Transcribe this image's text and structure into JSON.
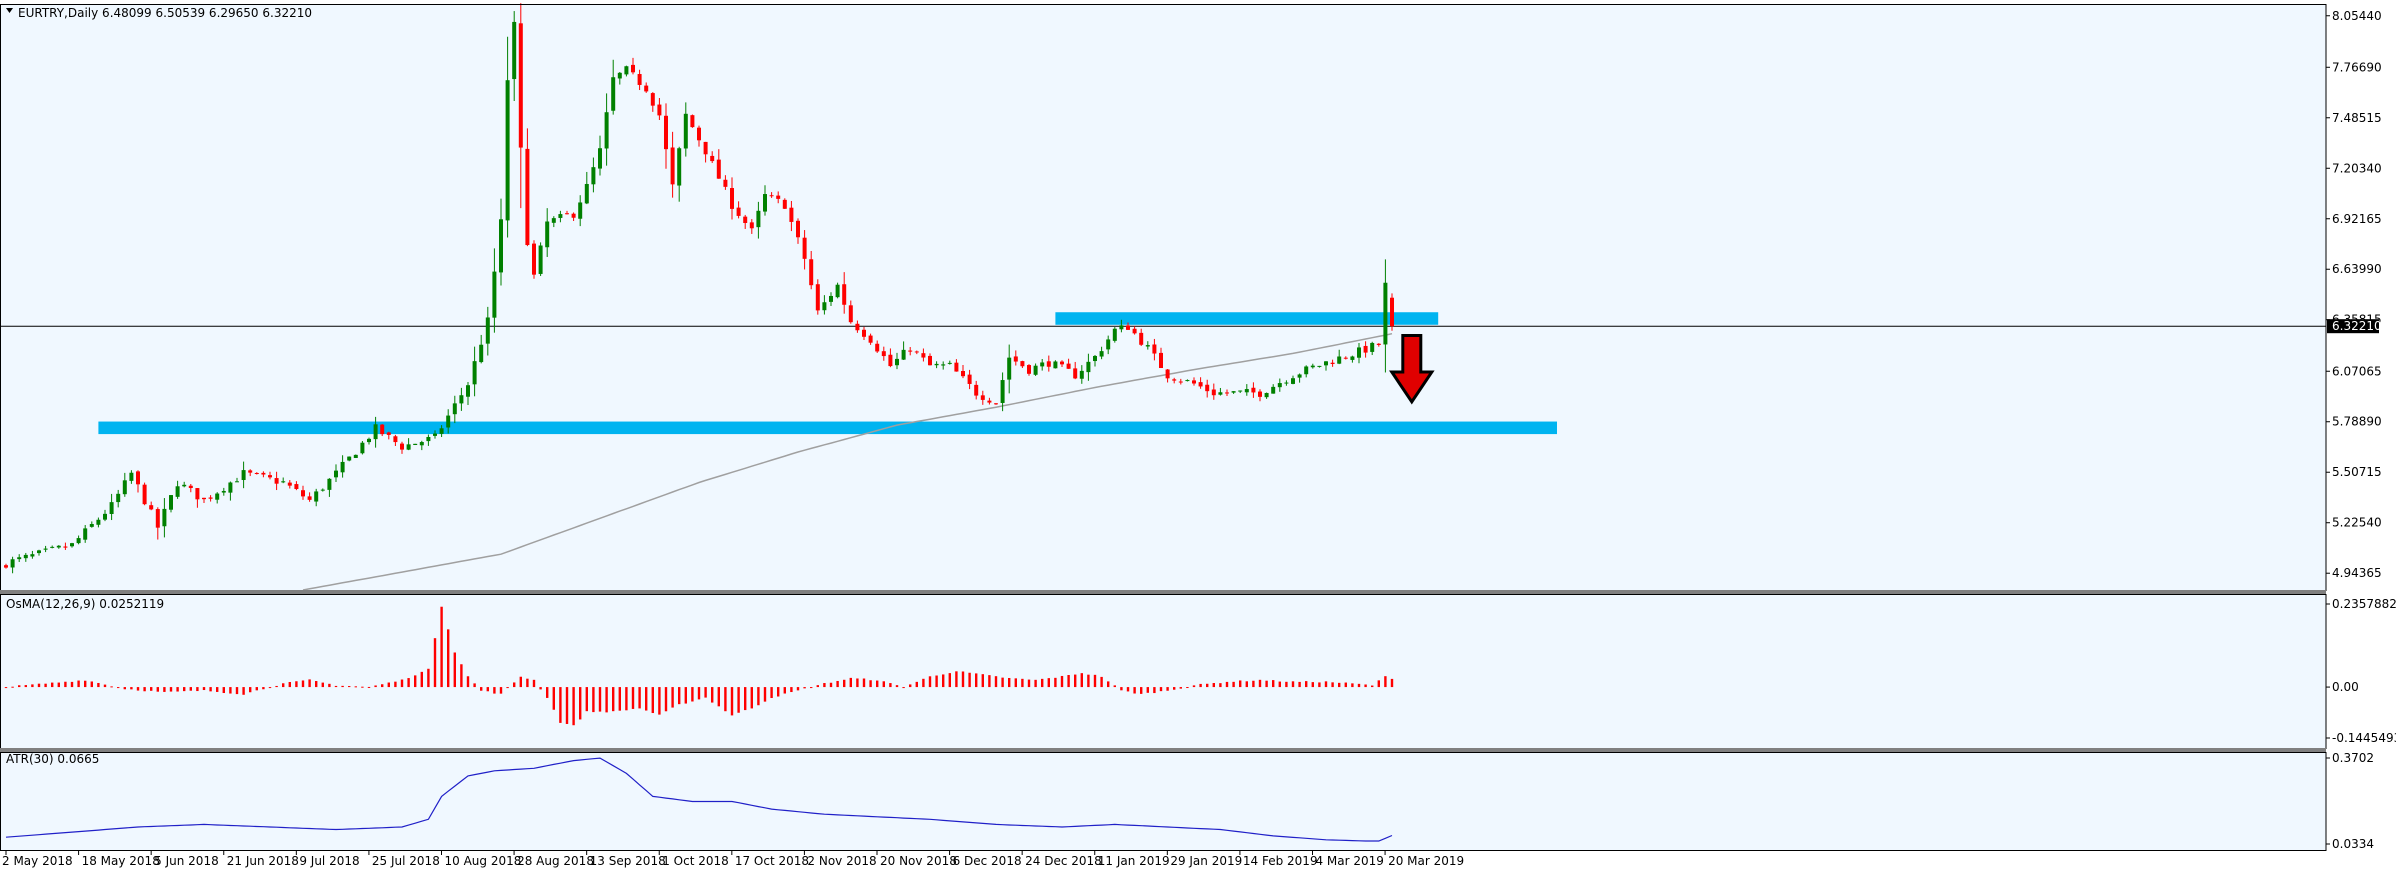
{
  "window": {
    "symbol_line": "EURTRY,Daily  6.48099 6.50539 6.29650 6.32210",
    "current_price": "6.32210"
  },
  "colors": {
    "background": "#f0f8ff",
    "bull": "#008000",
    "bear": "#ff0000",
    "sma": "#a0a0a0",
    "zone": "#00b4f0",
    "atr": "#2020c8",
    "arrow": "#e00000"
  },
  "chart_data": [
    {
      "type": "candlestick",
      "title": "EURTRY,Daily",
      "ohlc": {
        "open": 6.48099,
        "high": 6.50539,
        "low": 6.2965,
        "close": 6.3221
      },
      "ylim": [
        4.85,
        8.12
      ],
      "y_ticks": [
        "8.05440",
        "7.76690",
        "7.48515",
        "7.20340",
        "6.92165",
        "6.63990",
        "6.35815",
        "6.07065",
        "5.78890",
        "5.50715",
        "5.22540",
        "4.94365"
      ],
      "x_ticks": [
        "2 May 2018",
        "18 May 2018",
        "5 Jun 2018",
        "21 Jun 2018",
        "9 Jul 2018",
        "25 Jul 2018",
        "10 Aug 2018",
        "28 Aug 2018",
        "13 Sep 2018",
        "1 Oct 2018",
        "17 Oct 2018",
        "2 Nov 2018",
        "20 Nov 2018",
        "6 Dec 2018",
        "24 Dec 2018",
        "11 Jan 2019",
        "29 Jan 2019",
        "14 Feb 2019",
        "4 Mar 2019",
        "20 Mar 2019"
      ],
      "close_path": [
        [
          0,
          5.0
        ],
        [
          10,
          5.1
        ],
        [
          16,
          5.32
        ],
        [
          19,
          5.5
        ],
        [
          23,
          5.2
        ],
        [
          26,
          5.45
        ],
        [
          30,
          5.35
        ],
        [
          36,
          5.5
        ],
        [
          42,
          5.45
        ],
        [
          46,
          5.35
        ],
        [
          50,
          5.5
        ],
        [
          56,
          5.75
        ],
        [
          60,
          5.65
        ],
        [
          65,
          5.7
        ],
        [
          70,
          6.0
        ],
        [
          73,
          6.35
        ],
        [
          75,
          6.9
        ],
        [
          76,
          7.7
        ],
        [
          77,
          8.0
        ],
        [
          78,
          7.3
        ],
        [
          79,
          6.8
        ],
        [
          80,
          6.6
        ],
        [
          82,
          6.9
        ],
        [
          86,
          6.95
        ],
        [
          88,
          7.1
        ],
        [
          90,
          7.3
        ],
        [
          92,
          7.7
        ],
        [
          94,
          7.75
        ],
        [
          97,
          7.65
        ],
        [
          99,
          7.5
        ],
        [
          101,
          7.1
        ],
        [
          103,
          7.5
        ],
        [
          106,
          7.3
        ],
        [
          108,
          7.15
        ],
        [
          110,
          7.0
        ],
        [
          113,
          6.85
        ],
        [
          115,
          7.05
        ],
        [
          118,
          7.0
        ],
        [
          121,
          6.7
        ],
        [
          123,
          6.4
        ],
        [
          126,
          6.55
        ],
        [
          128,
          6.35
        ],
        [
          131,
          6.25
        ],
        [
          134,
          6.1
        ],
        [
          137,
          6.2
        ],
        [
          140,
          6.1
        ],
        [
          143,
          6.1
        ],
        [
          147,
          5.95
        ],
        [
          150,
          5.9
        ],
        [
          152,
          6.15
        ],
        [
          155,
          6.08
        ],
        [
          158,
          6.12
        ],
        [
          162,
          6.05
        ],
        [
          165,
          6.15
        ],
        [
          168,
          6.3
        ],
        [
          170,
          6.32
        ],
        [
          173,
          6.2
        ],
        [
          176,
          6.05
        ],
        [
          180,
          6.0
        ],
        [
          183,
          5.95
        ],
        [
          187,
          5.95
        ],
        [
          190,
          5.95
        ],
        [
          195,
          6.05
        ],
        [
          200,
          6.12
        ],
        [
          205,
          6.18
        ],
        [
          208,
          6.22
        ],
        [
          209,
          6.55
        ],
        [
          210,
          6.32
        ]
      ],
      "sma_path": [
        [
          45,
          4.85
        ],
        [
          60,
          4.95
        ],
        [
          75,
          5.05
        ],
        [
          90,
          5.25
        ],
        [
          105,
          5.45
        ],
        [
          120,
          5.62
        ],
        [
          135,
          5.77
        ],
        [
          150,
          5.87
        ],
        [
          165,
          5.98
        ],
        [
          180,
          6.08
        ],
        [
          195,
          6.17
        ],
        [
          210,
          6.28
        ]
      ],
      "zones": [
        {
          "from_bar": 14,
          "to_bar": 235,
          "low": 5.72,
          "high": 5.79
        },
        {
          "from_bar": 159,
          "to_bar": 217,
          "low": 6.33,
          "high": 6.4
        }
      ],
      "current_line": 6.3221,
      "arrow": {
        "bar": 213,
        "from": 6.27,
        "to": 5.9
      },
      "bars": 216
    },
    {
      "type": "bar",
      "title": "OsMA(12,26,9) 0.0252119",
      "ylim": [
        -0.1445493,
        0.2357882
      ],
      "y_ticks": [
        "0.2357882",
        "0.00",
        "-0.1445493"
      ],
      "path": [
        [
          0,
          0.0
        ],
        [
          6,
          0.01
        ],
        [
          12,
          0.02
        ],
        [
          18,
          -0.005
        ],
        [
          24,
          -0.015
        ],
        [
          30,
          -0.01
        ],
        [
          36,
          -0.02
        ],
        [
          42,
          0.01
        ],
        [
          46,
          0.02
        ],
        [
          50,
          0.005
        ],
        [
          55,
          0.0
        ],
        [
          60,
          0.02
        ],
        [
          64,
          0.05
        ],
        [
          66,
          0.23
        ],
        [
          68,
          0.1
        ],
        [
          70,
          0.03
        ],
        [
          72,
          -0.01
        ],
        [
          75,
          -0.02
        ],
        [
          78,
          0.03
        ],
        [
          80,
          0.02
        ],
        [
          82,
          -0.03
        ],
        [
          84,
          -0.1
        ],
        [
          86,
          -0.11
        ],
        [
          88,
          -0.07
        ],
        [
          92,
          -0.07
        ],
        [
          96,
          -0.06
        ],
        [
          99,
          -0.08
        ],
        [
          102,
          -0.05
        ],
        [
          106,
          -0.03
        ],
        [
          110,
          -0.08
        ],
        [
          113,
          -0.06
        ],
        [
          116,
          -0.03
        ],
        [
          120,
          -0.01
        ],
        [
          124,
          0.01
        ],
        [
          128,
          0.025
        ],
        [
          132,
          0.02
        ],
        [
          136,
          0.0
        ],
        [
          140,
          0.03
        ],
        [
          144,
          0.045
        ],
        [
          148,
          0.035
        ],
        [
          152,
          0.025
        ],
        [
          156,
          0.02
        ],
        [
          160,
          0.03
        ],
        [
          163,
          0.04
        ],
        [
          166,
          0.03
        ],
        [
          169,
          -0.01
        ],
        [
          172,
          -0.02
        ],
        [
          176,
          -0.01
        ],
        [
          180,
          0.005
        ],
        [
          185,
          0.015
        ],
        [
          190,
          0.02
        ],
        [
          195,
          0.015
        ],
        [
          200,
          0.015
        ],
        [
          204,
          0.01
        ],
        [
          207,
          0.005
        ],
        [
          209,
          0.03
        ],
        [
          210,
          0.0252
        ]
      ]
    },
    {
      "type": "line",
      "title": "ATR(30) 0.0665",
      "ylim": [
        0.0334,
        0.3702
      ],
      "y_ticks": [
        "0.3702",
        "0.0334"
      ],
      "path": [
        [
          0,
          0.06
        ],
        [
          10,
          0.08
        ],
        [
          20,
          0.1
        ],
        [
          30,
          0.11
        ],
        [
          40,
          0.1
        ],
        [
          50,
          0.09
        ],
        [
          60,
          0.1
        ],
        [
          64,
          0.13
        ],
        [
          66,
          0.22
        ],
        [
          70,
          0.3
        ],
        [
          74,
          0.32
        ],
        [
          80,
          0.33
        ],
        [
          86,
          0.36
        ],
        [
          90,
          0.37
        ],
        [
          94,
          0.31
        ],
        [
          98,
          0.22
        ],
        [
          104,
          0.2
        ],
        [
          110,
          0.2
        ],
        [
          116,
          0.17
        ],
        [
          124,
          0.15
        ],
        [
          132,
          0.14
        ],
        [
          140,
          0.13
        ],
        [
          150,
          0.11
        ],
        [
          160,
          0.1
        ],
        [
          168,
          0.11
        ],
        [
          176,
          0.1
        ],
        [
          184,
          0.09
        ],
        [
          192,
          0.065
        ],
        [
          200,
          0.05
        ],
        [
          206,
          0.045
        ],
        [
          208,
          0.045
        ],
        [
          210,
          0.0665
        ]
      ]
    }
  ]
}
